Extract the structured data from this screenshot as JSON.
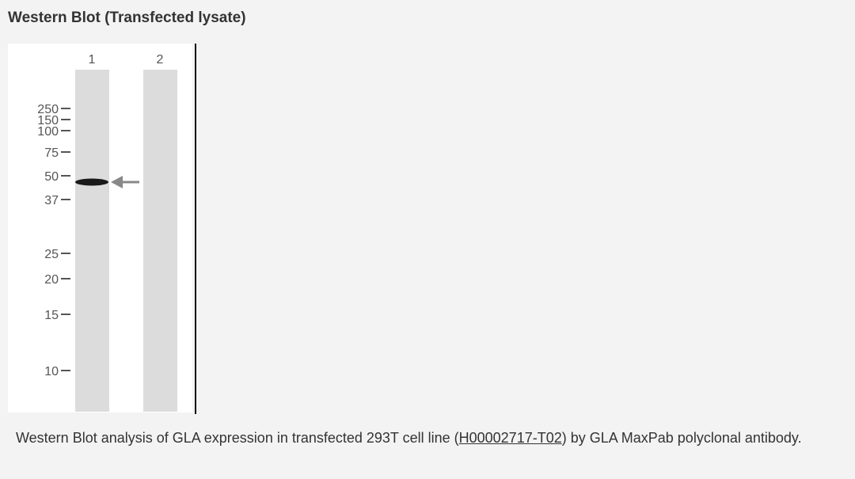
{
  "header": {
    "title": "Western Blot (Transfected lysate)"
  },
  "figure": {
    "lanes": [
      "1",
      "2"
    ],
    "markers": [
      "250",
      "150",
      "100",
      "75",
      "50",
      "37",
      "25",
      "20",
      "15",
      "10"
    ]
  },
  "caption": {
    "before": "Western Blot analysis of GLA expression in transfected 293T cell line (",
    "link": "H00002717-T02",
    "after": ") by GLA MaxPab polyclonal antibody."
  }
}
